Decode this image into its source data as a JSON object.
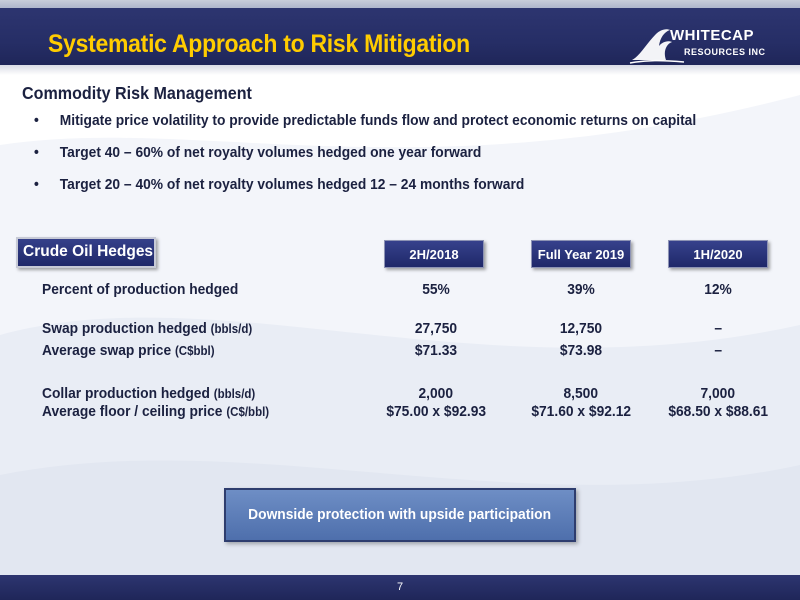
{
  "header": {
    "title": "Systematic Approach to Risk Mitigation",
    "logo_line1": "WHITECAP",
    "logo_line2": "RESOURCES INC"
  },
  "section": {
    "heading": "Commodity Risk Management",
    "bullet_symbol": "•",
    "bullets": [
      "Mitigate price volatility to provide predictable funds flow and protect economic returns on capital",
      "Target 40 – 60% of net royalty volumes hedged one year forward",
      "Target 20 – 40% of net royalty volumes hedged 12 – 24 months forward"
    ]
  },
  "table": {
    "label": "Crude Oil Hedges",
    "columns": [
      "2H/2018",
      "Full Year 2019",
      "1H/2020"
    ],
    "rows": [
      {
        "label": "Percent of production hedged",
        "unit": "",
        "values": [
          "55%",
          "39%",
          "12%"
        ]
      },
      {
        "label": "Swap production hedged",
        "unit": "(bbls/d)",
        "values": [
          "27,750",
          "12,750",
          "–"
        ]
      },
      {
        "label": "Average swap price",
        "unit": "(C$bbl)",
        "values": [
          "$71.33",
          "$73.98",
          "–"
        ]
      },
      {
        "label": "Collar production hedged",
        "unit": "(bbls/d)",
        "values": [
          "2,000",
          "8,500",
          "7,000"
        ]
      },
      {
        "label": "Average floor / ceiling price",
        "unit": "(C$/bbl)",
        "values": [
          "$75.00 x $92.93",
          "$71.60 x $92.12",
          "$68.50 x $88.61"
        ]
      }
    ]
  },
  "callout": {
    "text": "Downside protection with upside participation"
  },
  "footer": {
    "page_number": "7"
  },
  "colors": {
    "title": "#ffcc00",
    "header_bg": "#262e66",
    "callout_bg": "#5f7fbb"
  }
}
